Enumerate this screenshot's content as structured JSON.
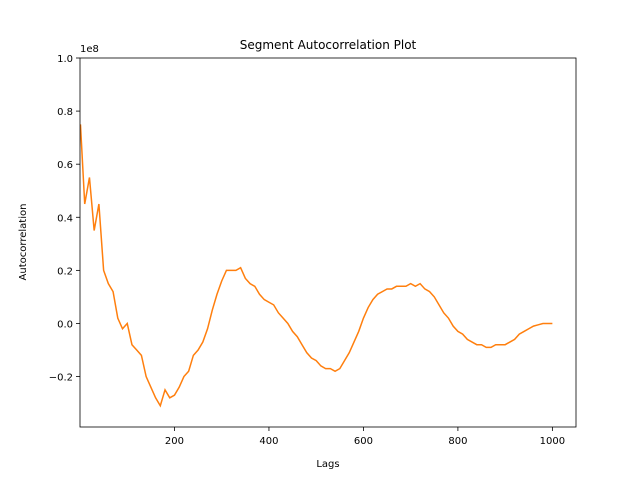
{
  "chart_data": {
    "type": "line",
    "title": "Segment Autocorrelation Plot",
    "xlabel": "Lags",
    "ylabel": "Autocorrelation",
    "y_offset_label": "1e8",
    "color": "#ff7f0e",
    "x": [
      1,
      10,
      20,
      30,
      40,
      50,
      60,
      70,
      80,
      90,
      100,
      110,
      120,
      130,
      140,
      150,
      160,
      170,
      180,
      190,
      200,
      210,
      220,
      230,
      240,
      250,
      260,
      270,
      280,
      290,
      300,
      310,
      320,
      330,
      340,
      350,
      360,
      370,
      380,
      390,
      400,
      410,
      420,
      430,
      440,
      450,
      460,
      470,
      480,
      490,
      500,
      510,
      520,
      530,
      540,
      550,
      560,
      570,
      580,
      590,
      600,
      610,
      620,
      630,
      640,
      650,
      660,
      670,
      680,
      690,
      700,
      710,
      720,
      730,
      740,
      750,
      760,
      770,
      780,
      790,
      800,
      810,
      820,
      830,
      840,
      850,
      860,
      870,
      880,
      890,
      900,
      910,
      920,
      930,
      940,
      950,
      960,
      970,
      980,
      990,
      1000
    ],
    "values": [
      0.75,
      0.45,
      0.55,
      0.35,
      0.45,
      0.2,
      0.15,
      0.12,
      0.02,
      -0.02,
      0.0,
      -0.08,
      -0.1,
      -0.12,
      -0.2,
      -0.24,
      -0.28,
      -0.31,
      -0.25,
      -0.28,
      -0.27,
      -0.24,
      -0.2,
      -0.18,
      -0.12,
      -0.1,
      -0.07,
      -0.02,
      0.05,
      0.11,
      0.16,
      0.2,
      0.2,
      0.2,
      0.21,
      0.17,
      0.15,
      0.14,
      0.11,
      0.09,
      0.08,
      0.07,
      0.04,
      0.02,
      0.0,
      -0.03,
      -0.05,
      -0.08,
      -0.11,
      -0.13,
      -0.14,
      -0.16,
      -0.17,
      -0.17,
      -0.18,
      -0.17,
      -0.14,
      -0.11,
      -0.07,
      -0.03,
      0.02,
      0.06,
      0.09,
      0.11,
      0.12,
      0.13,
      0.13,
      0.14,
      0.14,
      0.14,
      0.15,
      0.14,
      0.15,
      0.13,
      0.12,
      0.1,
      0.07,
      0.04,
      0.02,
      -0.01,
      -0.03,
      -0.04,
      -0.06,
      -0.07,
      -0.08,
      -0.08,
      -0.09,
      -0.09,
      -0.08,
      -0.08,
      -0.08,
      -0.07,
      -0.06,
      -0.04,
      -0.03,
      -0.02,
      -0.01,
      -0.005,
      0.0,
      0.0,
      0.0
    ],
    "xlim": [
      0,
      1050
    ],
    "xticks": [
      200,
      400,
      600,
      800,
      1000
    ],
    "ylim": [
      -0.39,
      1.0
    ],
    "yticks": [
      {
        "value": -0.2,
        "label": "−0.2"
      },
      {
        "value": 0,
        "label": "0.0"
      },
      0.2,
      0.4,
      0.6,
      0.8,
      {
        "value": 1,
        "label": "1.0"
      }
    ]
  }
}
